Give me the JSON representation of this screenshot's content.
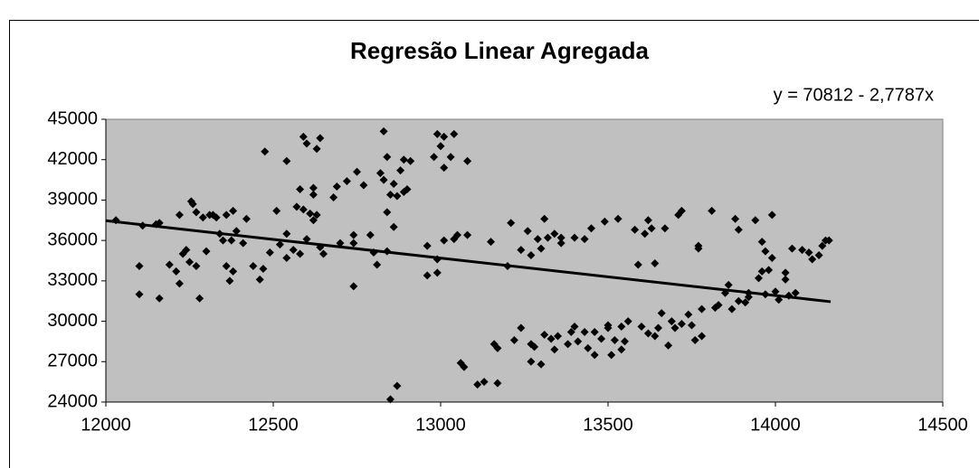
{
  "chart_data": {
    "type": "scatter",
    "title": "Regresão Linear Agregada",
    "equation": "y = 70812 - 2,7787x",
    "trendline": {
      "intercept": 70812,
      "slope": -2.7787,
      "x": [
        12000,
        14165
      ]
    },
    "color": "#000000",
    "plot_background": "#c0c0c0",
    "xlim": [
      12000,
      14500
    ],
    "xticks": [
      12000,
      12500,
      13000,
      13500,
      14000,
      14500
    ],
    "ylim": [
      24000,
      45000
    ],
    "yticks": [
      24000,
      27000,
      30000,
      33000,
      36000,
      39000,
      42000,
      45000
    ],
    "x": [
      12030,
      12100,
      12100,
      12110,
      12150,
      12160,
      12160,
      12190,
      12210,
      12220,
      12220,
      12230,
      12240,
      12250,
      12255,
      12260,
      12270,
      12270,
      12280,
      12290,
      12300,
      12310,
      12320,
      12330,
      12340,
      12350,
      12360,
      12360,
      12370,
      12375,
      12380,
      12380,
      12390,
      12410,
      12420,
      12440,
      12460,
      12470,
      12475,
      12490,
      12510,
      12520,
      12540,
      12540,
      12540,
      12560,
      12570,
      12580,
      12580,
      12590,
      12590,
      12600,
      12600,
      12610,
      12620,
      12620,
      12620,
      12630,
      12630,
      12640,
      12640,
      12650,
      12680,
      12690,
      12700,
      12720,
      12740,
      12740,
      12740,
      12750,
      12770,
      12790,
      12800,
      12810,
      12820,
      12830,
      12830,
      12840,
      12840,
      12840,
      12850,
      12850,
      12860,
      12860,
      12870,
      12870,
      12880,
      12890,
      12890,
      12900,
      12910,
      12960,
      12960,
      12980,
      12990,
      12990,
      12990,
      13000,
      13010,
      13010,
      13010,
      13030,
      13040,
      13040,
      13050,
      13060,
      13070,
      13080,
      13080,
      13110,
      13130,
      13150,
      13160,
      13170,
      13170,
      13200,
      13210,
      13220,
      13240,
      13240,
      13260,
      13270,
      13270,
      13270,
      13280,
      13290,
      13300,
      13300,
      13310,
      13310,
      13320,
      13330,
      13340,
      13340,
      13350,
      13360,
      13360,
      13380,
      13390,
      13400,
      13400,
      13410,
      13430,
      13430,
      13440,
      13450,
      13460,
      13460,
      13480,
      13490,
      13500,
      13500,
      13510,
      13520,
      13530,
      13540,
      13540,
      13550,
      13560,
      13580,
      13590,
      13600,
      13610,
      13620,
      13620,
      13630,
      13640,
      13640,
      13650,
      13660,
      13670,
      13680,
      13690,
      13700,
      13710,
      13720,
      13720,
      13740,
      13750,
      13760,
      13770,
      13770,
      13780,
      13780,
      13810,
      13820,
      13830,
      13850,
      13860,
      13870,
      13880,
      13890,
      13890,
      13910,
      13920,
      13920,
      13940,
      13950,
      13960,
      13960,
      13970,
      13970,
      13980,
      13990,
      13990,
      14000,
      14010,
      14030,
      14030,
      14040,
      14050,
      14060,
      14080,
      14100,
      14110,
      14130,
      14140,
      14150,
      14160
    ],
    "y": [
      37500,
      34100,
      32000,
      37100,
      37200,
      37300,
      31700,
      34200,
      33700,
      32800,
      37900,
      35000,
      35300,
      34400,
      38900,
      38700,
      34100,
      38100,
      31700,
      37700,
      35200,
      37900,
      37900,
      37700,
      36500,
      36000,
      37900,
      34100,
      33000,
      36000,
      33700,
      38200,
      36700,
      35800,
      37600,
      34100,
      33100,
      33900,
      42600,
      35100,
      38200,
      35700,
      34700,
      36500,
      41900,
      35300,
      38500,
      39800,
      35000,
      38300,
      43700,
      43200,
      36100,
      38000,
      39400,
      39900,
      37500,
      42800,
      37900,
      35500,
      43600,
      35000,
      39200,
      40000,
      35800,
      40400,
      35800,
      36400,
      32600,
      41100,
      40100,
      36400,
      35100,
      34200,
      41000,
      40500,
      44100,
      38100,
      42200,
      35200,
      24200,
      39400,
      40200,
      37000,
      25200,
      39300,
      41200,
      42000,
      39600,
      39800,
      41900,
      35600,
      33400,
      42200,
      34600,
      33600,
      43900,
      43000,
      36000,
      41400,
      43700,
      42200,
      43900,
      36100,
      36400,
      26900,
      26600,
      36400,
      41900,
      25300,
      25500,
      35900,
      28300,
      28000,
      25400,
      34100,
      37300,
      28600,
      29500,
      35300,
      36700,
      28300,
      27000,
      34900,
      28100,
      36100,
      35400,
      26800,
      37600,
      29000,
      36200,
      28700,
      27900,
      36500,
      28900,
      36200,
      35800,
      28300,
      29200,
      36200,
      29600,
      28500,
      36100,
      29200,
      28000,
      36900,
      29200,
      27500,
      28700,
      37400,
      29500,
      29700,
      27500,
      28600,
      37600,
      29600,
      27900,
      28500,
      30000,
      36800,
      34200,
      29600,
      36500,
      37500,
      29100,
      36900,
      28900,
      34300,
      29500,
      30600,
      36900,
      28200,
      30000,
      29500,
      37900,
      38200,
      29800,
      30500,
      29700,
      28600,
      35400,
      35600,
      28900,
      30900,
      38200,
      31000,
      31200,
      32100,
      32700,
      30900,
      37600,
      31500,
      36800,
      31400,
      31800,
      32100,
      37500,
      33200,
      33700,
      35900,
      32000,
      35200,
      33800,
      34700,
      37900,
      32200,
      31600,
      33100,
      33600,
      31900,
      35400,
      32100,
      35300,
      35100,
      34600,
      34900,
      35600,
      36000,
      36000
    ]
  }
}
